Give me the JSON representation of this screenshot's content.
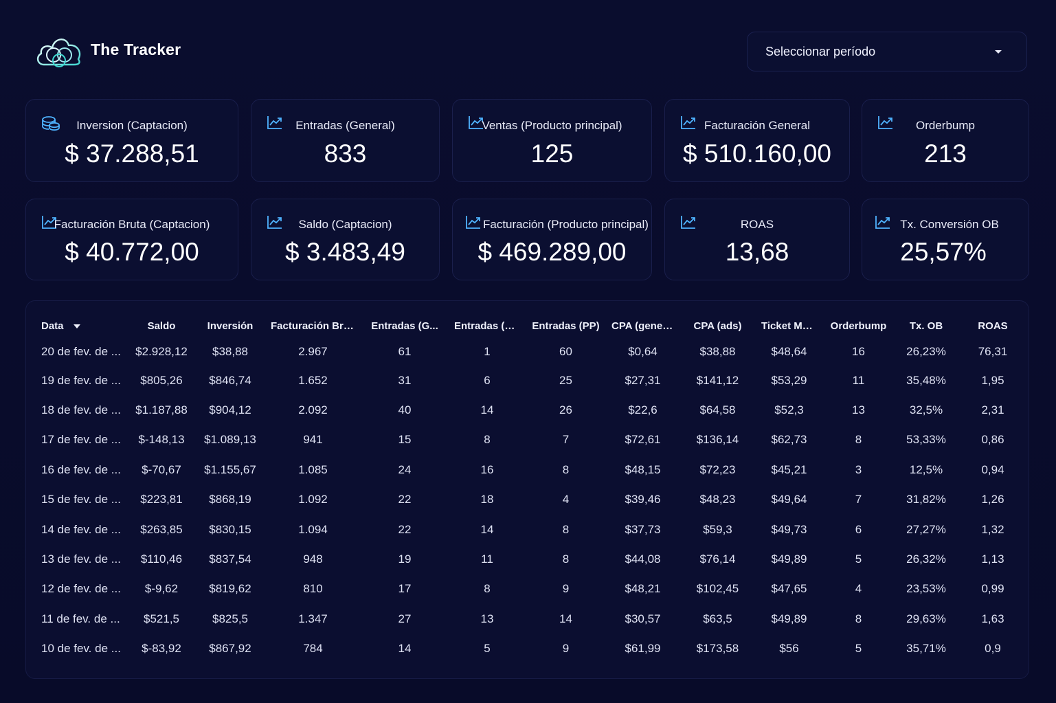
{
  "brand": {
    "name": "The Tracker",
    "logo_icon": "cloud-rings-logo"
  },
  "period_select": {
    "value": "Seleccionar período",
    "icon": "caret-down-icon"
  },
  "colors": {
    "background": "#090c2c",
    "card": "#0b0f31",
    "accent": "#4fb3ff",
    "accent_teal": "#3fd6d0"
  },
  "kpis_row1": [
    {
      "label": "Inversion (Captacion)",
      "value": "$ 37.288,51",
      "icon": "coins-icon"
    },
    {
      "label": "Entradas (General)",
      "value": "833",
      "icon": "trending-up-icon"
    },
    {
      "label": "Ventas (Producto principal)",
      "value": "125",
      "icon": "trending-up-icon"
    },
    {
      "label": "Facturación General",
      "value": "$ 510.160,00",
      "icon": "trending-up-icon"
    },
    {
      "label": "Orderbump",
      "value": "213",
      "icon": "trending-up-icon"
    }
  ],
  "kpis_row2": [
    {
      "label": "Facturación Bruta (Captacion)",
      "value": "$ 40.772,00",
      "icon": "trending-up-icon"
    },
    {
      "label": "Saldo (Captacion)",
      "value": "$ 3.483,49",
      "icon": "trending-up-icon"
    },
    {
      "label": "Facturación (Producto principal)",
      "value": "$ 469.289,00",
      "icon": "trending-up-icon"
    },
    {
      "label": "ROAS",
      "value": "13,68",
      "icon": "trending-up-icon"
    },
    {
      "label": "Tx. Conversión OB",
      "value": "25,57%",
      "icon": "trending-up-icon"
    }
  ],
  "table": {
    "columns": [
      "Data",
      "Saldo",
      "Inversión",
      "Facturación Bruta",
      "Entradas (G...",
      "Entradas (OB)",
      "Entradas (PP)",
      "CPA (general)",
      "CPA (ads)",
      "Ticket Médio",
      "Orderbump",
      "Tx. OB",
      "ROAS"
    ],
    "rows": [
      [
        "20 de fev. de ...",
        "$2.928,12",
        "$38,88",
        "2.967",
        "61",
        "1",
        "60",
        "$0,64",
        "$38,88",
        "$48,64",
        "16",
        "26,23%",
        "76,31"
      ],
      [
        "19 de fev. de ...",
        "$805,26",
        "$846,74",
        "1.652",
        "31",
        "6",
        "25",
        "$27,31",
        "$141,12",
        "$53,29",
        "11",
        "35,48%",
        "1,95"
      ],
      [
        "18 de fev. de ...",
        "$1.187,88",
        "$904,12",
        "2.092",
        "40",
        "14",
        "26",
        "$22,6",
        "$64,58",
        "$52,3",
        "13",
        "32,5%",
        "2,31"
      ],
      [
        "17 de fev. de ...",
        "$-148,13",
        "$1.089,13",
        "941",
        "15",
        "8",
        "7",
        "$72,61",
        "$136,14",
        "$62,73",
        "8",
        "53,33%",
        "0,86"
      ],
      [
        "16 de fev. de ...",
        "$-70,67",
        "$1.155,67",
        "1.085",
        "24",
        "16",
        "8",
        "$48,15",
        "$72,23",
        "$45,21",
        "3",
        "12,5%",
        "0,94"
      ],
      [
        "15 de fev. de ...",
        "$223,81",
        "$868,19",
        "1.092",
        "22",
        "18",
        "4",
        "$39,46",
        "$48,23",
        "$49,64",
        "7",
        "31,82%",
        "1,26"
      ],
      [
        "14 de fev. de ...",
        "$263,85",
        "$830,15",
        "1.094",
        "22",
        "14",
        "8",
        "$37,73",
        "$59,3",
        "$49,73",
        "6",
        "27,27%",
        "1,32"
      ],
      [
        "13 de fev. de ...",
        "$110,46",
        "$837,54",
        "948",
        "19",
        "11",
        "8",
        "$44,08",
        "$76,14",
        "$49,89",
        "5",
        "26,32%",
        "1,13"
      ],
      [
        "12 de fev. de ...",
        "$-9,62",
        "$819,62",
        "810",
        "17",
        "8",
        "9",
        "$48,21",
        "$102,45",
        "$47,65",
        "4",
        "23,53%",
        "0,99"
      ],
      [
        "11 de fev. de ...",
        "$521,5",
        "$825,5",
        "1.347",
        "27",
        "13",
        "14",
        "$30,57",
        "$63,5",
        "$49,89",
        "8",
        "29,63%",
        "1,63"
      ],
      [
        "10 de fev. de ...",
        "$-83,92",
        "$867,92",
        "784",
        "14",
        "5",
        "9",
        "$61,99",
        "$173,58",
        "$56",
        "5",
        "35,71%",
        "0,9"
      ]
    ]
  }
}
